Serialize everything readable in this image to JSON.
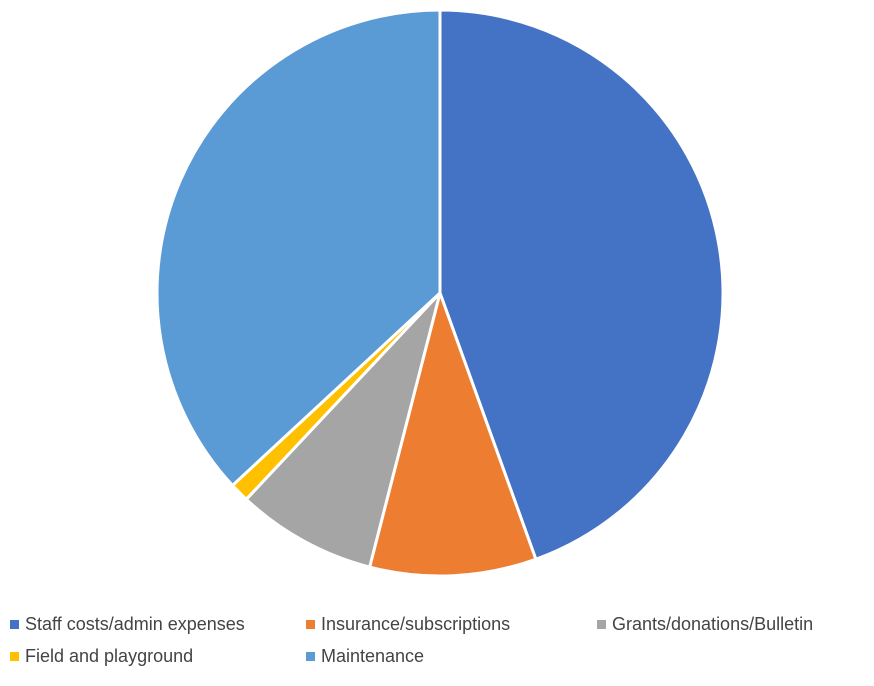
{
  "chart_data": {
    "type": "pie",
    "title": "",
    "categories": [
      "Staff costs/admin expenses",
      "Insurance/subscriptions",
      "Grants/donations/Bulletin",
      "Field and playground",
      "Maintenance"
    ],
    "values": [
      44.5,
      9.5,
      8.0,
      1.1,
      36.9
    ],
    "colors": [
      "#4472c4",
      "#ed7d31",
      "#a5a5a5",
      "#ffc000",
      "#5b9bd5"
    ],
    "legend_position": "bottom"
  }
}
